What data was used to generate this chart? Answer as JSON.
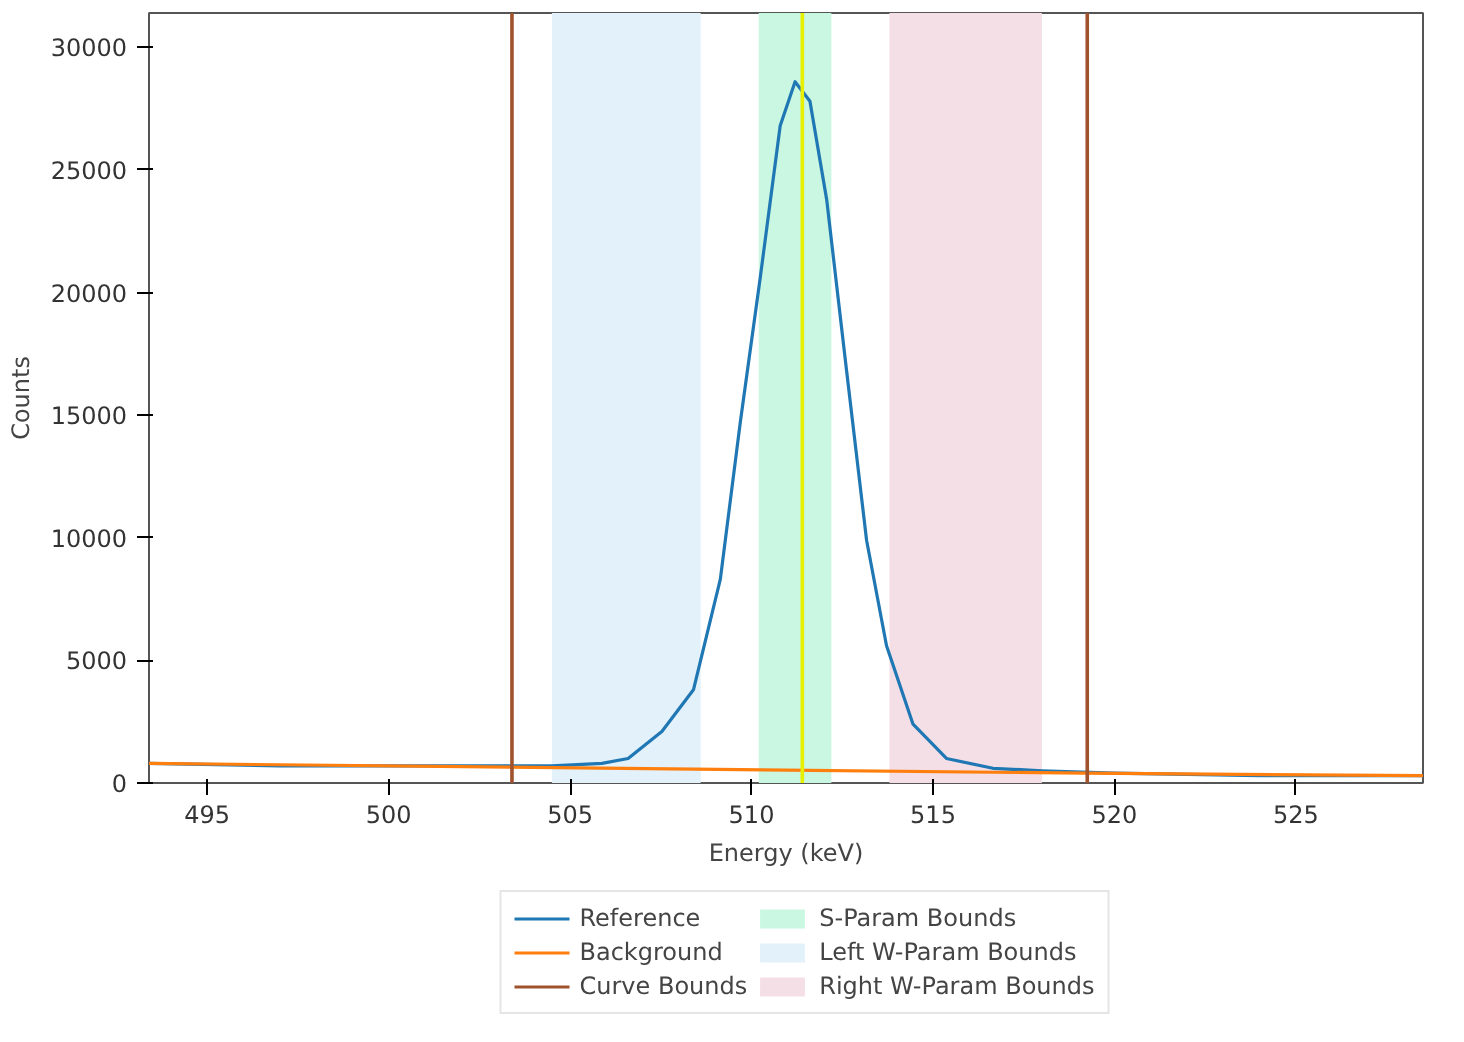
{
  "chart_data": {
    "type": "line",
    "xlabel": "Energy (keV)",
    "ylabel": "Counts",
    "xlim": [
      493.4,
      528.5
    ],
    "ylim": [
      0,
      31400
    ],
    "xticks": [
      495,
      500,
      505,
      510,
      515,
      520,
      525
    ],
    "yticks": [
      0,
      5000,
      10000,
      15000,
      20000,
      25000,
      30000
    ],
    "grid": false,
    "legend": "bottom",
    "series": [
      {
        "name": "Reference",
        "color": "#1f77b4",
        "x": [
          493.4,
          497,
          500,
          503.4,
          504.5,
          505.88,
          506.6,
          507.53,
          508.4,
          509.14,
          509.69,
          510.24,
          510.79,
          511.2,
          511.61,
          512.07,
          512.62,
          513.17,
          513.72,
          514.45,
          515.37,
          516.65,
          518,
          520,
          524,
          528.5
        ],
        "values": [
          800,
          700,
          700,
          700,
          700,
          800,
          1000,
          2100,
          3800,
          8300,
          14700,
          20600,
          26800,
          28600,
          27800,
          23800,
          16800,
          9900,
          5600,
          2400,
          1000,
          600,
          500,
          400,
          300,
          300
        ]
      },
      {
        "name": "Background",
        "color": "#ff7f0e",
        "x": [
          493.4,
          519.2,
          528.5
        ],
        "values": [
          800,
          400,
          300
        ]
      }
    ],
    "ref_lines": [
      {
        "axis": "x",
        "value": 503.4,
        "label": "Curve Bounds",
        "color": "#a0522d"
      },
      {
        "axis": "x",
        "value": 519.25,
        "color": "#a0522d"
      },
      {
        "axis": "x",
        "value": 511.4,
        "color": "#e6f000"
      }
    ],
    "bands": [
      {
        "axis": "x",
        "from": 510.2,
        "to": 512.2,
        "label": "S-Param Bounds",
        "color": "#c9f7e1"
      },
      {
        "axis": "x",
        "from": 504.5,
        "to": 508.6,
        "label": "Left W-Param Bounds",
        "color": "#e2f1fa"
      },
      {
        "axis": "x",
        "from": 513.8,
        "to": 518.0,
        "label": "Right W-Param Bounds",
        "color": "#f4dfe7"
      }
    ]
  }
}
